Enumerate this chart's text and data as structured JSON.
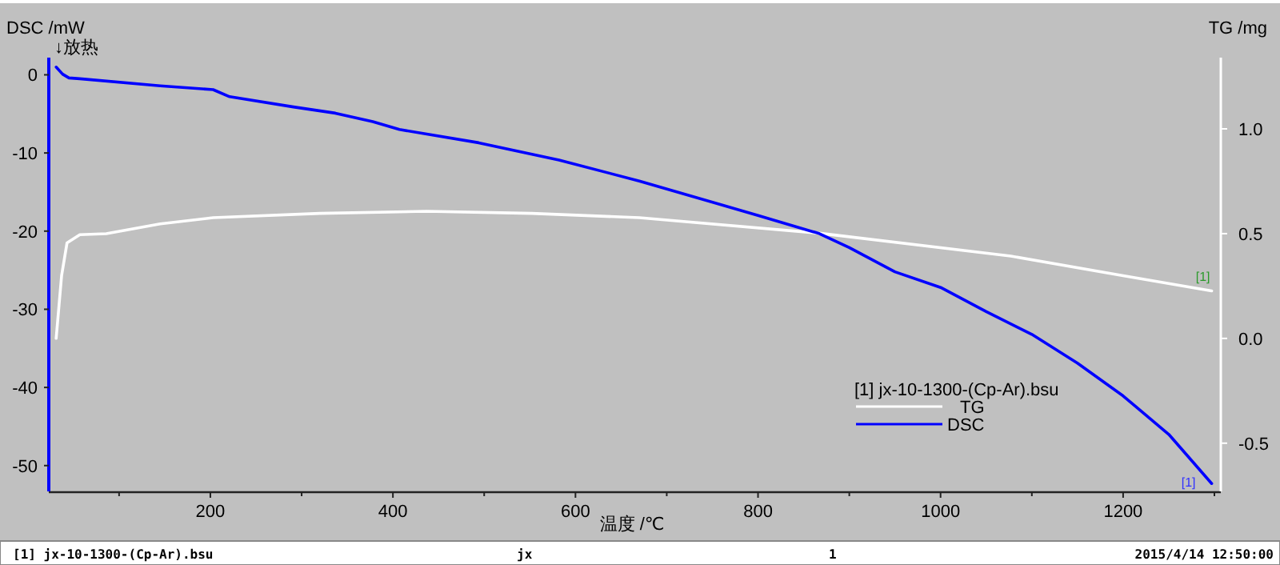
{
  "chart_data": {
    "type": "line",
    "ylabel": "DSC /mW",
    "y2label": "TG /mg",
    "xlabel": "温度 /℃",
    "legend_title": "[1] jx-10-1300-(Cp-Ar).bsu",
    "legend": "bottom right",
    "grid": false,
    "marker": "none",
    "line_style": "solid",
    "xlim": [
      23,
      1300
    ],
    "ylim": [
      -53.3,
      2.2
    ],
    "y2lim": [
      -0.73,
      1.34
    ],
    "xticks": [
      {
        "value": 100,
        "label": null
      },
      200,
      {
        "value": 300,
        "label": null
      },
      400,
      {
        "value": 500,
        "label": null
      },
      600,
      {
        "value": 700,
        "label": null
      },
      800,
      {
        "value": 900,
        "label": null
      },
      1000,
      {
        "value": 1100,
        "label": null
      },
      1200,
      {
        "value": 1300,
        "label": null
      }
    ],
    "yticks": [
      -50,
      -40,
      -30,
      -20,
      -10,
      0
    ],
    "y2ticks": [
      -0.5,
      {
        "value": 0,
        "label": "0.0"
      },
      0.5,
      {
        "value": 1,
        "label": "1.0"
      }
    ],
    "series": [
      {
        "name": "TG",
        "color": "#ffffff",
        "axis": "y2",
        "x": [
          31,
          37,
          43,
          57,
          86,
          145,
          203,
          320,
          437,
          552,
          670,
          867,
          1077,
          1200,
          1297
        ],
        "values": [
          0.0,
          0.3,
          0.456,
          0.495,
          0.5,
          0.546,
          0.576,
          0.597,
          0.607,
          0.597,
          0.576,
          0.502,
          0.393,
          0.3,
          0.227
        ]
      },
      {
        "name": "DSC",
        "color": "#0000ff",
        "x": [
          31,
          38,
          45,
          57,
          145,
          203,
          221,
          291,
          337,
          378,
          407,
          494,
          582,
          670,
          800,
          867,
          900,
          950,
          1000,
          1050,
          1100,
          1150,
          1200,
          1250,
          1297
        ],
        "values": [
          1.0,
          0.1,
          -0.4,
          -0.5,
          -1.4,
          -1.9,
          -2.8,
          -4.1,
          -4.9,
          -6.0,
          -7.0,
          -8.7,
          -10.9,
          -13.6,
          -18.0,
          -20.3,
          -22.1,
          -25.2,
          -27.2,
          -30.3,
          -33.2,
          -36.9,
          -41.1,
          -46.0,
          -52.3
        ]
      }
    ],
    "annotations": [
      "↓放热",
      "[1]",
      "[1]",
      "[1] jx-10-1300-(Cp-Ar).bsu",
      "jx",
      "1",
      "2015/4/14 12:50:00"
    ]
  }
}
